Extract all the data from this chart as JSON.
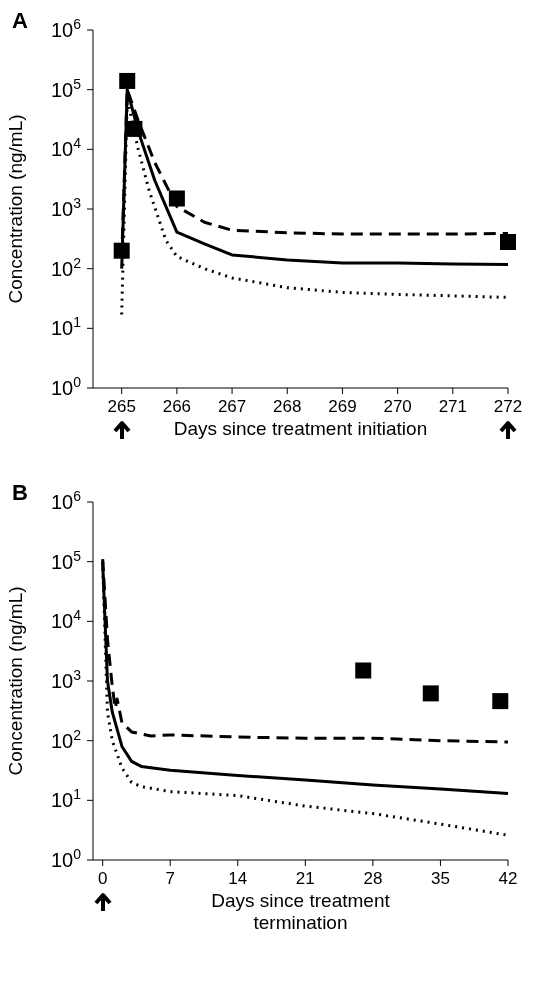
{
  "chart_data": [
    {
      "type": "line",
      "title": "A",
      "xlabel": "Days since treatment initiation",
      "ylabel": "Concentration (ng/mL)",
      "log": "y",
      "grid": false,
      "legend": false,
      "xlim": [
        264.48,
        272
      ],
      "xticks": [
        265,
        266,
        267,
        268,
        269,
        270,
        271,
        272
      ],
      "ylim": [
        1,
        1000000
      ],
      "yticks": [
        {
          "value": 1,
          "label": "10$^{0}$"
        },
        {
          "value": 10,
          "label": "10$^{1}$"
        },
        {
          "value": 100,
          "label": "10$^{2}$"
        },
        {
          "value": 1000,
          "label": "10$^{3}$"
        },
        {
          "value": 10000,
          "label": "10$^{4}$"
        },
        {
          "value": 100000,
          "label": "10$^{5}$"
        },
        {
          "value": 1000000,
          "label": "10$^{6}$"
        }
      ],
      "series": [
        {
          "type": "line",
          "color": "#000000",
          "line_style": "solid",
          "marker": "none",
          "x": [
            265,
            265.1,
            265.3,
            265.6,
            266,
            266.5,
            267,
            268,
            269,
            270,
            271,
            272
          ],
          "values": [
            100,
            100000,
            20000,
            3000,
            410,
            260,
            170,
            140,
            125,
            125,
            120,
            118
          ]
        },
        {
          "type": "line",
          "color": "#000000",
          "line_style": "dashed",
          "marker": "none",
          "x": [
            265,
            265.1,
            265.3,
            265.6,
            266,
            266.5,
            267,
            268,
            269,
            270,
            271,
            272
          ],
          "values": [
            150,
            100000,
            30000,
            6000,
            1100,
            600,
            440,
            400,
            380,
            380,
            380,
            390
          ]
        },
        {
          "type": "line",
          "color": "#000000",
          "line_style": "dotted",
          "marker": "none",
          "x": [
            265,
            265.1,
            265.3,
            265.5,
            265.8,
            266,
            266.5,
            267,
            268,
            269,
            270,
            271,
            272
          ],
          "values": [
            17,
            70000,
            10000,
            2000,
            300,
            160,
            100,
            70,
            48,
            40,
            37,
            35,
            33
          ]
        },
        {
          "type": "scatter",
          "color": "#000000",
          "marker": "square",
          "x": [
            265,
            265.1,
            265.23,
            266,
            272
          ],
          "values": [
            200,
            140000,
            22000,
            1500,
            280
          ]
        }
      ]
    },
    {
      "type": "line",
      "title": "B",
      "xlabel": "Days since treatment termination",
      "ylabel": "Concentration (ng/mL)",
      "log": "y",
      "grid": false,
      "legend": false,
      "xlim": [
        -1,
        42
      ],
      "xticks": [
        0,
        7,
        14,
        21,
        28,
        35,
        42
      ],
      "ylim": [
        1,
        1000000
      ],
      "yticks": [
        {
          "value": 1,
          "label": "10$^{0}$"
        },
        {
          "value": 10,
          "label": "10$^{1}$"
        },
        {
          "value": 100,
          "label": "10$^{2}$"
        },
        {
          "value": 1000,
          "label": "10$^{3}$"
        },
        {
          "value": 10000,
          "label": "10$^{4}$"
        },
        {
          "value": 100000,
          "label": "10$^{5}$"
        },
        {
          "value": 1000000,
          "label": "10$^{6}$"
        }
      ],
      "series": [
        {
          "type": "line",
          "color": "#000000",
          "line_style": "solid",
          "marker": "none",
          "x": [
            0,
            0.5,
            1,
            2,
            3,
            4,
            7,
            14,
            21,
            28,
            35,
            42
          ],
          "values": [
            100000,
            1000,
            300,
            80,
            45,
            37,
            32,
            26,
            22,
            18,
            15.5,
            13
          ]
        },
        {
          "type": "line",
          "color": "#000000",
          "line_style": "dashed",
          "marker": "none",
          "x": [
            0,
            0.5,
            1,
            1.3,
            1.5,
            2,
            3,
            5,
            7,
            14,
            21,
            28,
            35,
            42
          ],
          "values": [
            110000,
            5000,
            800,
            350,
            500,
            200,
            140,
            120,
            125,
            115,
            110,
            110,
            100,
            95
          ]
        },
        {
          "type": "line",
          "color": "#000000",
          "line_style": "dotted",
          "marker": "none",
          "x": [
            0,
            0.5,
            1,
            2,
            3,
            4,
            7,
            14,
            21,
            28,
            35,
            42
          ],
          "values": [
            100000,
            300,
            100,
            35,
            20,
            17,
            14,
            12,
            8,
            6,
            4,
            2.6
          ]
        },
        {
          "type": "scatter",
          "color": "#000000",
          "marker": "square",
          "x": [
            27,
            34,
            41.2
          ],
          "values": [
            1500,
            620,
            460
          ]
        }
      ]
    }
  ]
}
